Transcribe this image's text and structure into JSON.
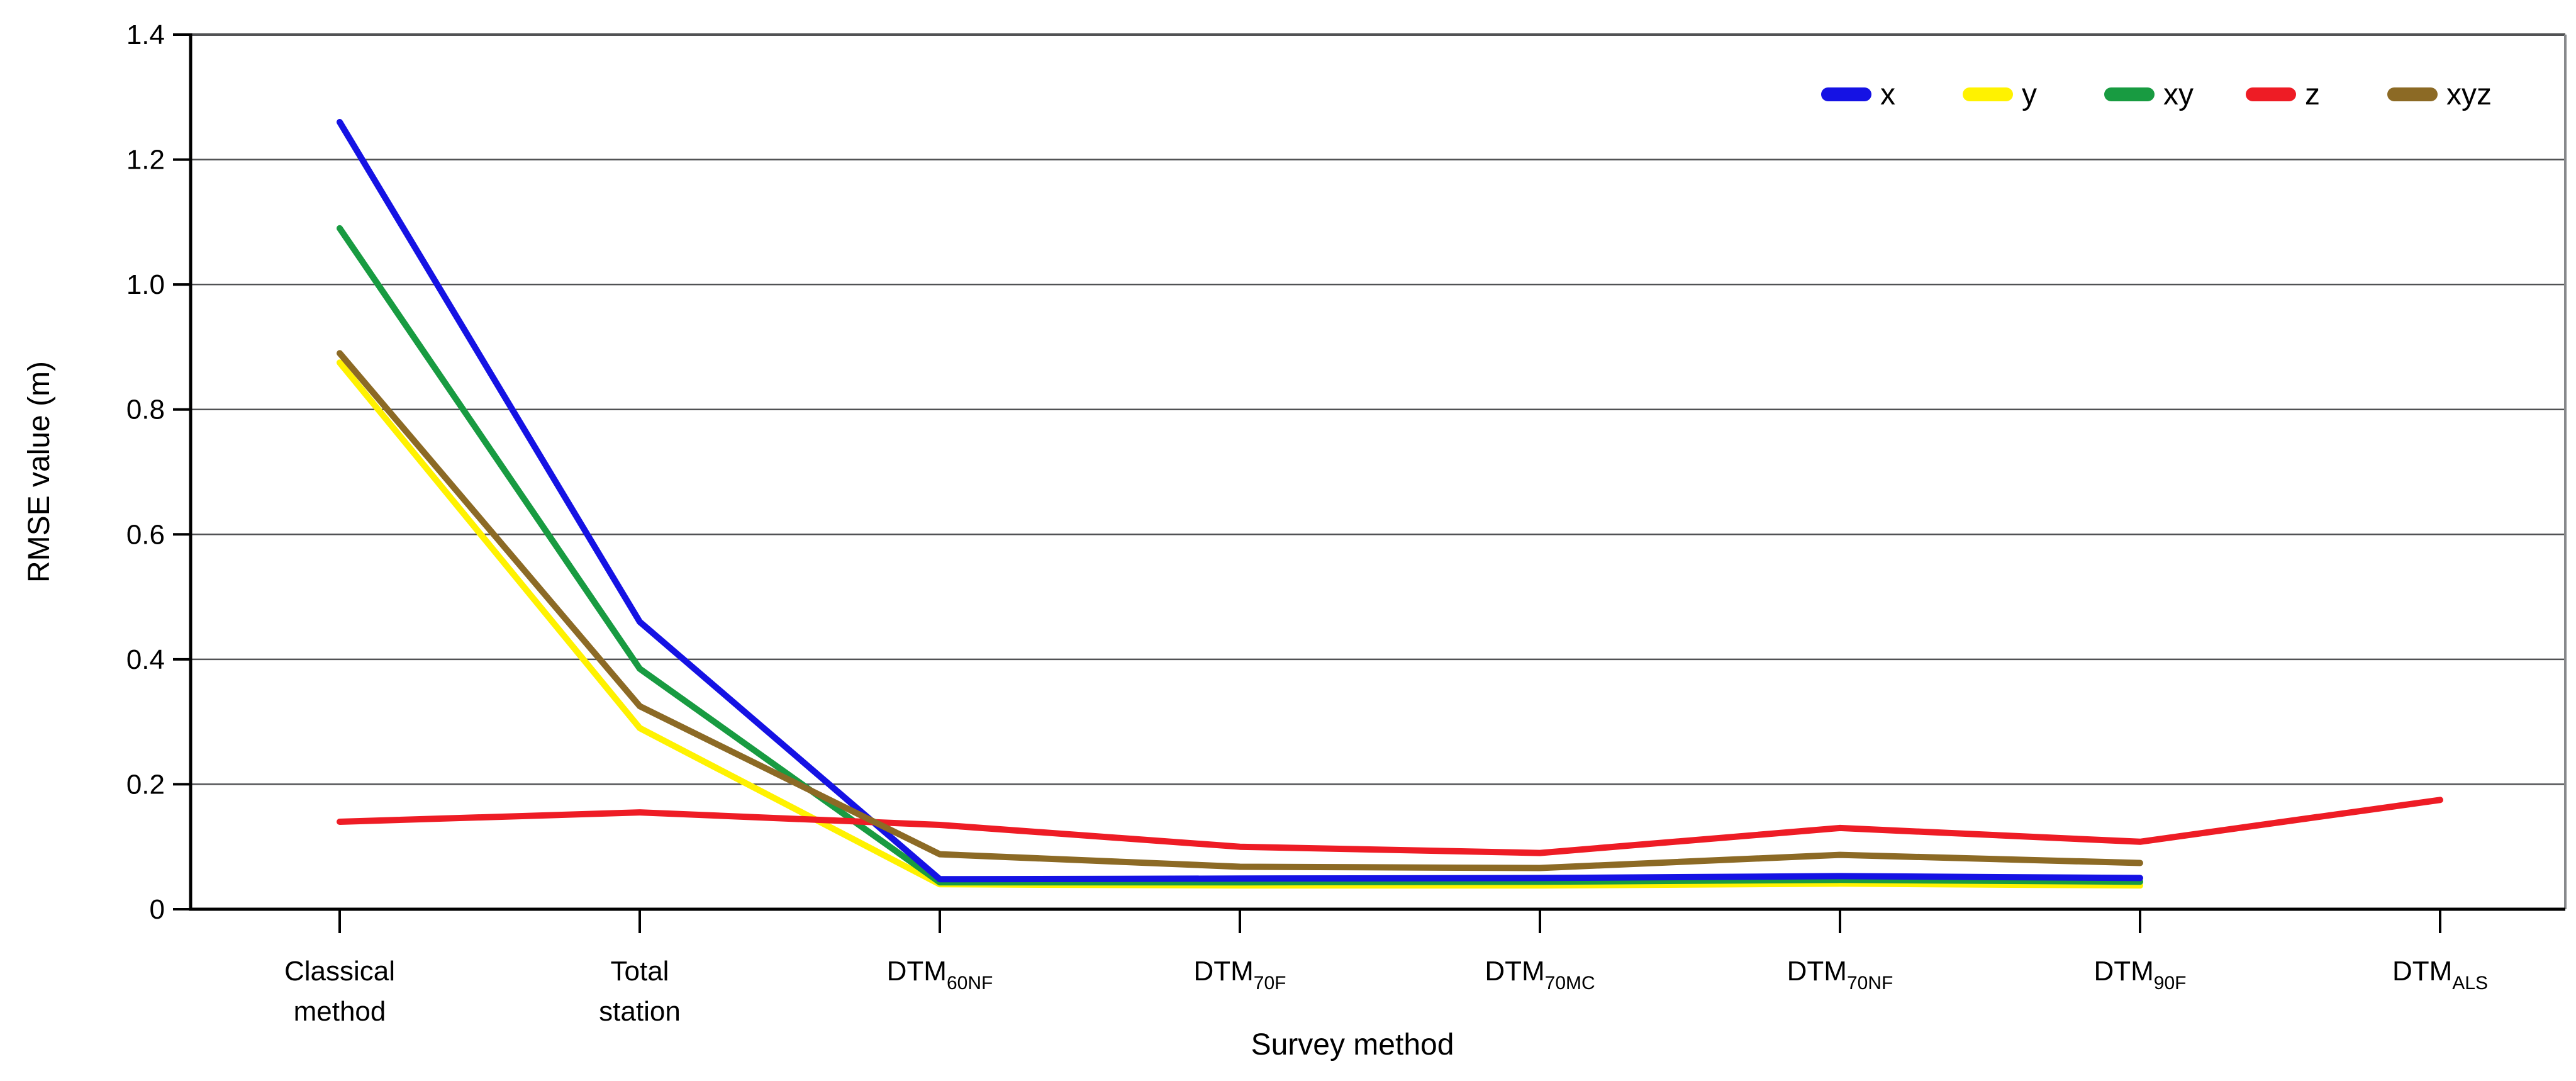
{
  "figure": {
    "background_color": "#FFFFFF"
  },
  "chart_data": {
    "type": "line",
    "title": "",
    "xlabel": "Survey method",
    "ylabel": "RMSE value (m)",
    "ylim": [
      0,
      1.4
    ],
    "y_tick_step": 0.2,
    "y_tick_labels": [
      "0",
      "0.2",
      "0.4",
      "0.6",
      "0.8",
      "1.0",
      "1.2",
      "1.4"
    ],
    "grid": "horizontal",
    "legend_position": "top-right",
    "axis_color": "#000000",
    "grid_color": "#515254",
    "border_color": "#87898C",
    "categories": [
      {
        "main": "Classical",
        "second_line": "method",
        "sub": ""
      },
      {
        "main": "Total",
        "second_line": "station",
        "sub": ""
      },
      {
        "main": "DTM",
        "second_line": "",
        "sub": "60NF"
      },
      {
        "main": "DTM",
        "second_line": "",
        "sub": "70F"
      },
      {
        "main": "DTM",
        "second_line": "",
        "sub": "70MC"
      },
      {
        "main": "DTM",
        "second_line": "",
        "sub": "70NF"
      },
      {
        "main": "DTM",
        "second_line": "",
        "sub": "90F"
      },
      {
        "main": "DTM",
        "second_line": "",
        "sub": "ALS"
      }
    ],
    "series": [
      {
        "name": "x",
        "color": "#1512E4",
        "values": [
          1.26,
          0.46,
          0.048,
          0.049,
          0.05,
          0.053,
          0.05,
          null
        ]
      },
      {
        "name": "y",
        "color": "#FFF200",
        "values": [
          0.875,
          0.29,
          0.04,
          0.038,
          0.038,
          0.041,
          0.038,
          null
        ]
      },
      {
        "name": "xy",
        "color": "#189B41",
        "values": [
          1.09,
          0.385,
          0.043,
          0.043,
          0.044,
          0.047,
          0.044,
          null
        ]
      },
      {
        "name": "z",
        "color": "#EE1C25",
        "values": [
          0.14,
          0.155,
          0.135,
          0.1,
          0.09,
          0.13,
          0.108,
          0.175
        ]
      },
      {
        "name": "xyz",
        "color": "#8C6A25",
        "values": [
          0.89,
          0.325,
          0.088,
          0.068,
          0.066,
          0.087,
          0.074,
          null
        ]
      }
    ]
  }
}
